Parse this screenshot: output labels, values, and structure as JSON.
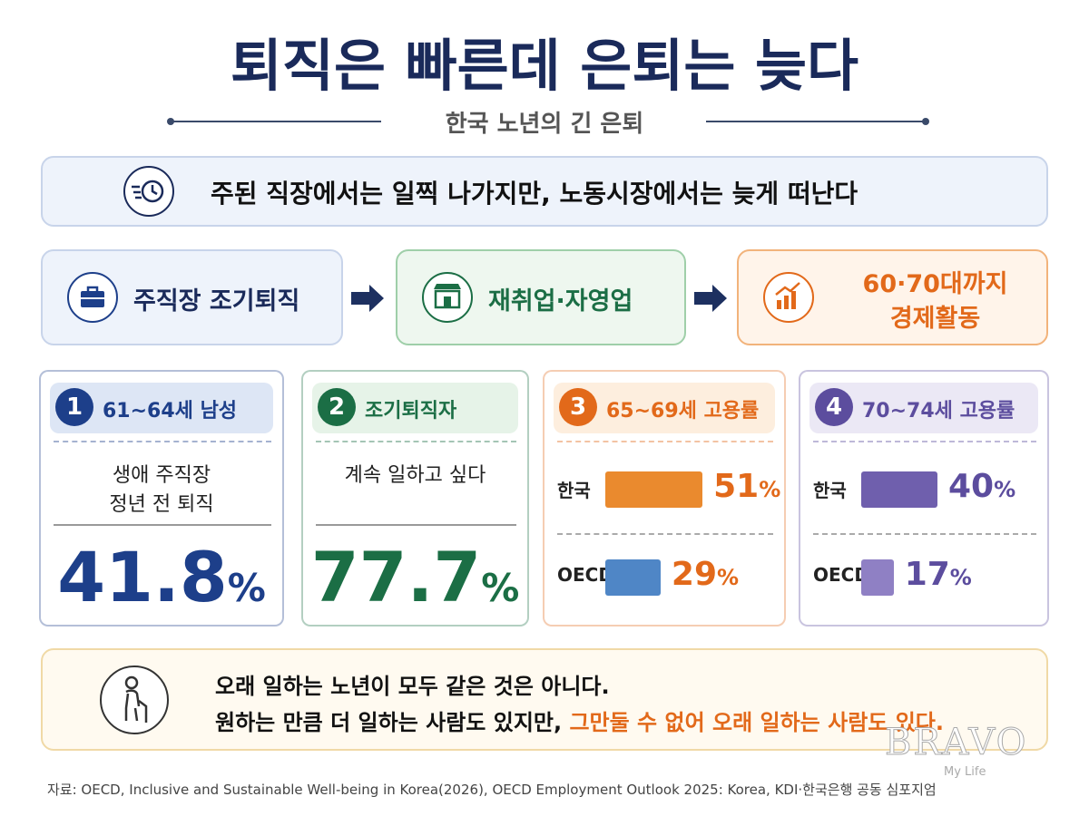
{
  "title": "퇴직은 빠른데 은퇴는 늦다",
  "subtitle": "한국 노년의 긴 은퇴",
  "banner": "주된 직장에서는 일찍 나가지만, 노동시장에서는 늦게 떠난다",
  "steps": [
    [
      "주직장 조기퇴직"
    ],
    [
      "재취업·자영업"
    ],
    [
      "60·70대까지",
      "경제활동"
    ]
  ],
  "cards": [
    {
      "number": 1,
      "label": "61~64세 남성",
      "color": "#1d3f8a",
      "desc": [
        "생애 주직장",
        "정년 전 퇴직"
      ],
      "value": 41.8,
      "unit": "%"
    },
    {
      "number": 2,
      "label": "조기퇴직자",
      "color": "#1b6e45",
      "desc": [
        "계속 일하고 싶다"
      ],
      "value": 77.7,
      "unit": "%"
    },
    {
      "number": 3,
      "label": "65~69세 고용률",
      "color": "#e2691a",
      "bars": [
        {
          "name": "한국",
          "value": 51,
          "unit": "%",
          "color": "#ea8a2e"
        },
        {
          "name": "OECD",
          "value": 29,
          "unit": "%",
          "color": "#4f86c6"
        }
      ]
    },
    {
      "number": 4,
      "label": "70~74세 고용률",
      "color": "#5c4d9e",
      "bars": [
        {
          "name": "한국",
          "value": 40,
          "unit": "%",
          "color": "#6f5fad"
        },
        {
          "name": "OECD",
          "value": 17,
          "unit": "%",
          "color": "#8f80c4"
        }
      ]
    }
  ],
  "note": {
    "line1": "오래 일하는 노년이 모두 같은 것은 아니다.",
    "line2": "원하는 만큼 더 일하는 사람도 있지만, ",
    "line2_highlight": "그만둘 수 없어 오래 일하는 사람도 있다."
  },
  "source": "자료: OECD, Inclusive and Sustainable Well-being in Korea(2026), OECD Employment Outlook 2025: Korea, KDI·한국은행 공동 심포지엄",
  "watermark": {
    "brand": "BRAVO",
    "tagline": "My Life"
  }
}
